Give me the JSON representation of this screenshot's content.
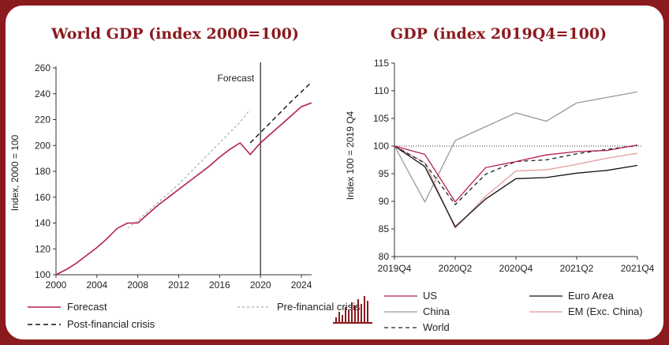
{
  "left_chart": {
    "title": "World GDP (index 2000=100)",
    "ylabel": "Index, 2000 = 100",
    "xlim": [
      2000,
      2025
    ],
    "ylim": [
      100,
      260
    ],
    "x_ticks": [
      2000,
      2004,
      2008,
      2012,
      2016,
      2020,
      2024
    ],
    "y_ticks": [
      100,
      120,
      140,
      160,
      180,
      200,
      220,
      240,
      260
    ],
    "forecast_label": "Forecast",
    "forecast_year": 2020,
    "legend": [
      {
        "key": "forecast",
        "label": "Forecast"
      },
      {
        "key": "pre",
        "label": "Pre-financial crisis"
      },
      {
        "key": "post",
        "label": "Post-financial crisis"
      }
    ]
  },
  "right_chart": {
    "title": "GDP (index 2019Q4=100)",
    "ylabel": "Index 100 = 2019 Q4",
    "ylim": [
      80,
      115
    ],
    "y_ticks": [
      80,
      85,
      90,
      95,
      100,
      105,
      110,
      115
    ],
    "x_tick_labels": [
      "2019Q4",
      "2020Q2",
      "2020Q4",
      "2021Q2",
      "2021Q4"
    ],
    "legend": [
      {
        "key": "us",
        "label": "US"
      },
      {
        "key": "euro",
        "label": "Euro Area"
      },
      {
        "key": "china",
        "label": "China"
      },
      {
        "key": "em",
        "label": "EM (Exc. China)"
      },
      {
        "key": "world",
        "label": "World"
      }
    ]
  },
  "colors": {
    "brand": "#8b1a1f",
    "forecast": "#b5214a",
    "pre": "#b0b0b0",
    "post": "#111111",
    "us": "#b5214a",
    "euro": "#111111",
    "china": "#999999",
    "em": "#e8aaaa",
    "world": "#222222"
  },
  "chart_data": [
    {
      "type": "line",
      "title": "World GDP (index 2000=100)",
      "ylabel": "Index, 2000 = 100",
      "xlim": [
        2000,
        2025
      ],
      "ylim": [
        100,
        260
      ],
      "series": [
        {
          "name": "Forecast",
          "key": "forecast",
          "x": [
            2000,
            2001,
            2002,
            2003,
            2004,
            2005,
            2006,
            2007,
            2008,
            2009,
            2010,
            2011,
            2012,
            2013,
            2014,
            2015,
            2016,
            2017,
            2018,
            2019,
            2020,
            2021,
            2022,
            2023,
            2024,
            2025
          ],
          "y": [
            100,
            104,
            109,
            115,
            121,
            128,
            136,
            140,
            140,
            147,
            154,
            160,
            166,
            172,
            178,
            184,
            191,
            197,
            202,
            193,
            202,
            209,
            216,
            223,
            230,
            233
          ]
        },
        {
          "name": "Pre-financial crisis",
          "key": "pre",
          "x": [
            2007,
            2008,
            2010,
            2012,
            2014,
            2016,
            2018,
            2019
          ],
          "y": [
            136,
            142,
            156,
            170,
            186,
            202,
            218,
            228
          ]
        },
        {
          "name": "Post-financial crisis",
          "key": "post",
          "x": [
            2019,
            2021,
            2023,
            2025
          ],
          "y": [
            202,
            218,
            234,
            249
          ]
        }
      ]
    },
    {
      "type": "line",
      "title": "GDP (index 2019Q4=100)",
      "ylabel": "Index 100 = 2019 Q4",
      "ylim": [
        80,
        115
      ],
      "categories": [
        "2019Q4",
        "2020Q1",
        "2020Q2",
        "2020Q3",
        "2020Q4",
        "2021Q1",
        "2021Q2",
        "2021Q3",
        "2021Q4"
      ],
      "reference_line": 100,
      "series": [
        {
          "name": "US",
          "key": "us",
          "values": [
            100,
            98.5,
            89.9,
            96.1,
            97.2,
            98.4,
            99.0,
            99.2,
            100.2
          ]
        },
        {
          "name": "Euro Area",
          "key": "euro",
          "values": [
            100,
            96.3,
            85.4,
            90.4,
            94.1,
            94.3,
            95.1,
            95.6,
            96.5
          ]
        },
        {
          "name": "China",
          "key": "china",
          "values": [
            100,
            89.9,
            101.0,
            103.5,
            106.0,
            104.5,
            107.8,
            108.8,
            109.8
          ]
        },
        {
          "name": "EM (Exc. China)",
          "key": "em",
          "values": [
            100,
            97.0,
            85.1,
            90.9,
            95.5,
            95.7,
            96.7,
            97.8,
            98.7
          ]
        },
        {
          "name": "World",
          "key": "world",
          "values": [
            100,
            96.9,
            89.4,
            94.9,
            97.2,
            97.5,
            98.6,
            99.4,
            100.1
          ]
        }
      ]
    }
  ]
}
